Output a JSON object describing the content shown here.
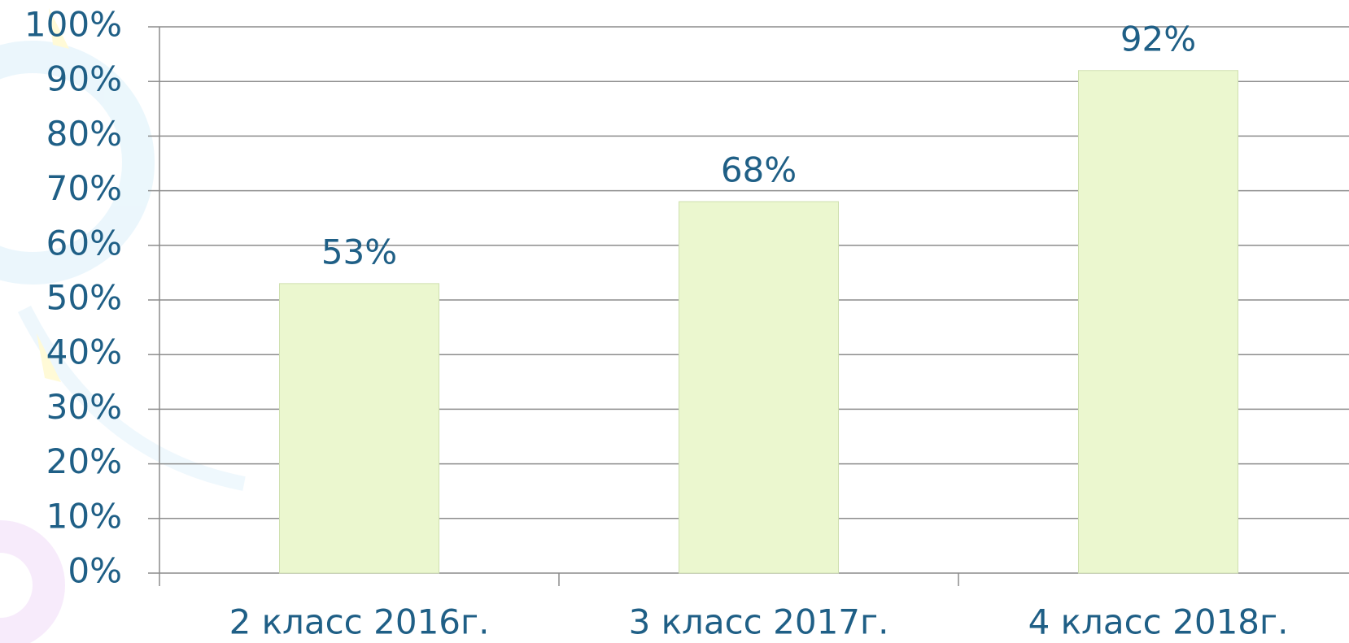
{
  "chart_data": {
    "type": "bar",
    "categories": [
      "2 класс 2016г.",
      "3 класс 2017г.",
      "4 класс 2018г."
    ],
    "values": [
      53,
      68,
      92
    ],
    "value_labels": [
      "53%",
      "68%",
      "92%"
    ],
    "color": "#ebf7cf",
    "ylim": [
      0,
      100
    ],
    "yticks": [
      {
        "value": 0,
        "label": "0%"
      },
      {
        "value": 10,
        "label": "10%"
      },
      {
        "value": 20,
        "label": "20%"
      },
      {
        "value": 30,
        "label": "30%"
      },
      {
        "value": 40,
        "label": "40%"
      },
      {
        "value": 50,
        "label": "50%"
      },
      {
        "value": 60,
        "label": "60%"
      },
      {
        "value": 70,
        "label": "70%"
      },
      {
        "value": 80,
        "label": "80%"
      },
      {
        "value": 90,
        "label": "90%"
      },
      {
        "value": 100,
        "label": "100%"
      }
    ],
    "grid": true
  }
}
